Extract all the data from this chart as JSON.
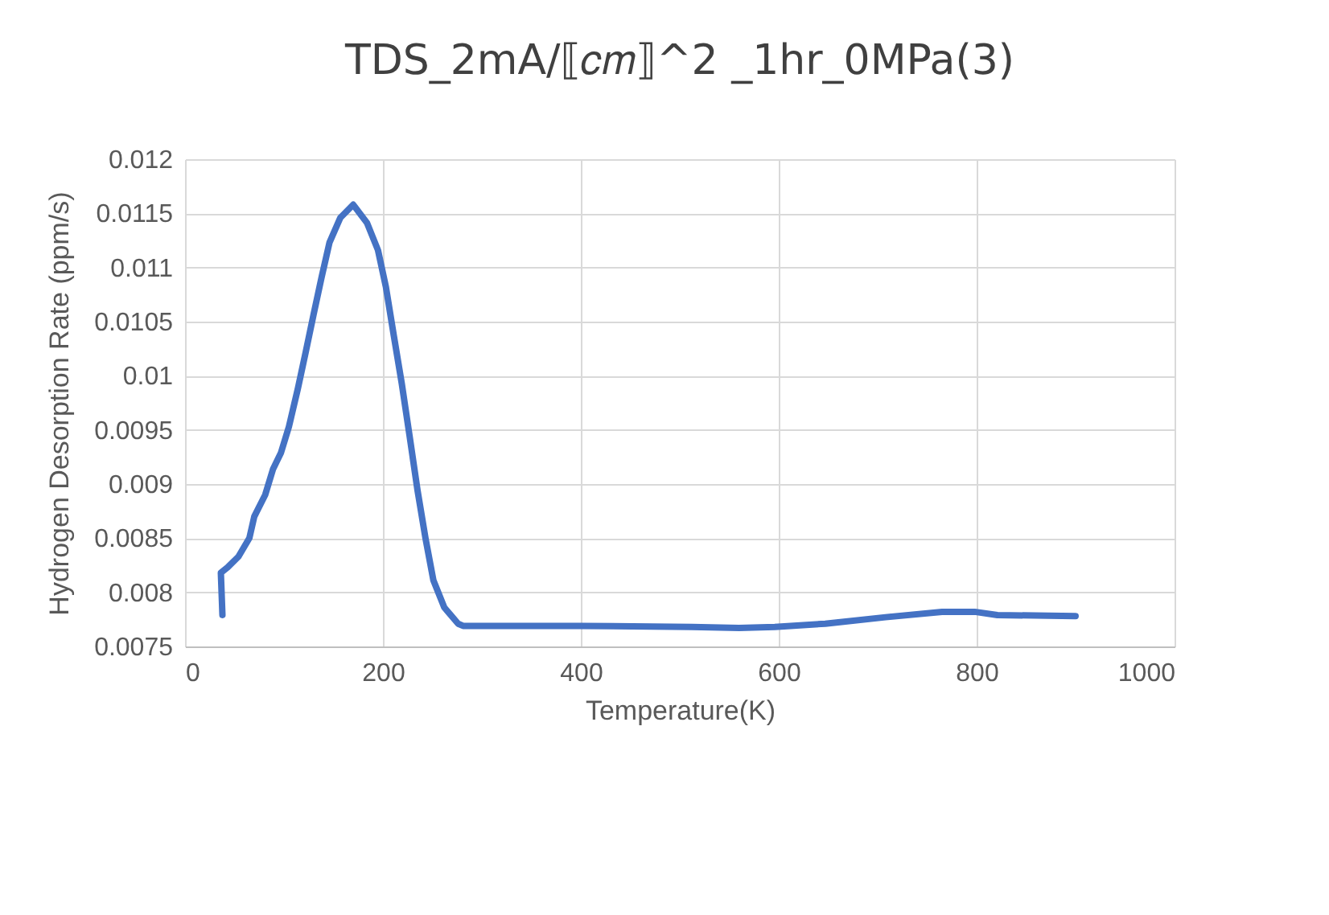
{
  "chart_data": {
    "type": "line",
    "title": "TDS_2mA/⟦𝑐𝑚⟧^2 _1hr_0MPa(3)",
    "xlabel": "Temperature(K)",
    "ylabel": "Hydrogen Desorption Rate (ppm/s)",
    "x": [
      37.8,
      36.2,
      43,
      54,
      65,
      70,
      81,
      89,
      97,
      105,
      114,
      122,
      130,
      138,
      146,
      157,
      170,
      184,
      195,
      203,
      211,
      219,
      227,
      235,
      243,
      251,
      262,
      276,
      281,
      400,
      512,
      560,
      596,
      647,
      708,
      765,
      798,
      821,
      900
    ],
    "series": [
      {
        "color": "#4472c4",
        "values": [
          0.00779,
          0.00818,
          0.00823,
          0.00833,
          0.0085,
          0.0087,
          0.0089,
          0.00914,
          0.00929,
          0.00953,
          0.00988,
          0.01022,
          0.01057,
          0.01091,
          0.01123,
          0.01146,
          0.01158,
          0.01141,
          0.01116,
          0.01082,
          0.01037,
          0.00993,
          0.00944,
          0.00894,
          0.0085,
          0.00811,
          0.00786,
          0.00771,
          0.00769,
          0.00769,
          0.00768,
          0.00767,
          0.00768,
          0.00771,
          0.00777,
          0.00782,
          0.00782,
          0.00779,
          0.00778
        ]
      }
    ],
    "xlim": [
      0,
      1000
    ],
    "xticks": [
      0,
      200,
      400,
      600,
      800,
      1000
    ],
    "ylim": [
      0.0075,
      0.012
    ],
    "yticks": [
      0.0075,
      0.008,
      0.0085,
      0.009,
      0.0095,
      0.01,
      0.0105,
      0.011,
      0.0115,
      0.012
    ],
    "grid": true,
    "marker": "none",
    "line_style": "solid"
  }
}
